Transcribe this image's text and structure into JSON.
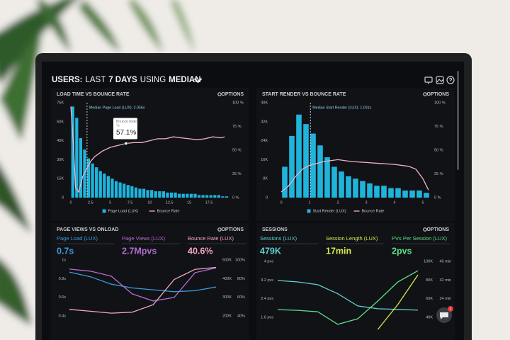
{
  "header": {
    "title_parts": [
      "USERS:",
      "LAST",
      "7 DAYS",
      "USING",
      "MEDIAN"
    ]
  },
  "chat_badge": "1",
  "chart_data": [
    {
      "type": "histogram",
      "title": "LOAD TIME VS BOUNCE RATE",
      "options_label": "OPTIONS",
      "bins": [
        0,
        0.5,
        1,
        1.5,
        2,
        2.5,
        3,
        3.5,
        4,
        4.5,
        5,
        5.5,
        6,
        6.5,
        7,
        7.5,
        8,
        8.5,
        9,
        9.5,
        10,
        10.5,
        11,
        11.5,
        12,
        12.5,
        13,
        13.5,
        14,
        14.5,
        15,
        15.5,
        16,
        16.5,
        17,
        17.5,
        18,
        18.5,
        19,
        19.5,
        20
      ],
      "xlim": [
        -0.5,
        20
      ],
      "xticks": [
        0,
        2.5,
        5,
        7.5,
        10,
        12.5,
        15,
        17.5
      ],
      "ylim": [
        0,
        75000
      ],
      "yticks": [
        0,
        {
          "value": 15000,
          "label": "15K"
        },
        {
          "value": 30000,
          "label": "30K"
        },
        {
          "value": 45000,
          "label": "45K"
        },
        {
          "value": 60000,
          "label": "60K"
        },
        {
          "value": 75000,
          "label": "75K"
        }
      ],
      "y2lim": [
        0,
        100
      ],
      "y2ticks": [
        {
          "value": 0,
          "label": "0 %"
        },
        {
          "value": 25,
          "label": "25 %"
        },
        {
          "value": 50,
          "label": "50 %"
        },
        {
          "value": 75,
          "label": "75 %"
        },
        {
          "value": 100,
          "label": "100 %"
        }
      ],
      "series": [
        {
          "name": "Page Load (LUX)",
          "color": "#1fb4dc",
          "values": [
            72000,
            63000,
            47000,
            38000,
            31000,
            27000,
            24000,
            21000,
            19000,
            17000,
            15000,
            13000,
            12000,
            11000,
            10000,
            9000,
            8000,
            7000,
            7000,
            6000,
            6000,
            5000,
            5000,
            5000,
            4000,
            4000,
            4000,
            3000,
            3000,
            3000,
            3000,
            3000,
            2000,
            2000,
            2000,
            2000,
            2000,
            2000,
            1000,
            1000
          ]
        },
        {
          "name": "Bounce Rate",
          "color": "#f0b3c8",
          "axis": "y2",
          "x": [
            0,
            0.3,
            0.6,
            1,
            1.5,
            2,
            2.5,
            3,
            4,
            5,
            6,
            7,
            8,
            9,
            10,
            11,
            12,
            13,
            14,
            15,
            16,
            17,
            18,
            19,
            19.5
          ],
          "values": [
            96,
            60,
            10,
            6,
            22,
            30,
            38,
            43,
            49,
            53,
            55,
            57.1,
            58,
            58,
            60,
            62,
            62,
            64,
            63,
            62,
            61,
            62,
            64,
            63,
            64
          ]
        }
      ],
      "annotations": [
        {
          "text": "Median Page Load (LUX): 2.056s",
          "x": 2.056
        }
      ],
      "tooltip": {
        "title": "Bounce Rate",
        "x_label": "7s",
        "value_label": "57.1%",
        "x": 7,
        "value": 57.1
      }
    },
    {
      "type": "histogram",
      "title": "START RENDER VS BOUNCE RATE",
      "options_label": "OPTIONS",
      "bins": [
        0,
        0.25,
        0.5,
        0.75,
        1,
        1.25,
        1.5,
        1.75,
        2,
        2.25,
        2.5,
        2.75,
        3,
        3.25,
        3.5,
        3.75,
        4,
        4.25,
        4.5,
        4.75,
        5,
        5.25
      ],
      "xlim": [
        -0.25,
        5.275
      ],
      "xticks": [
        0,
        1,
        2,
        3,
        4,
        5
      ],
      "ylim": [
        0,
        40000
      ],
      "yticks": [
        0,
        {
          "value": 8000,
          "label": "8K"
        },
        {
          "value": 16000,
          "label": "16K"
        },
        {
          "value": 24000,
          "label": "24K"
        },
        {
          "value": 32000,
          "label": "32K"
        },
        {
          "value": 40000,
          "label": "40K"
        }
      ],
      "y2lim": [
        0,
        100
      ],
      "y2ticks": [
        {
          "value": 0,
          "label": "0 %"
        },
        {
          "value": 25,
          "label": "25 %"
        },
        {
          "value": 50,
          "label": "50 %"
        },
        {
          "value": 75,
          "label": "75 %"
        },
        {
          "value": 100,
          "label": "100 %"
        }
      ],
      "series": [
        {
          "name": "Start Render (LUX)",
          "color": "#1fb4dc",
          "values": [
            13000,
            26000,
            35000,
            31000,
            27000,
            22000,
            17000,
            13000,
            11000,
            9000,
            8000,
            7000,
            6000,
            5000,
            5000,
            4000,
            4000,
            3000,
            3000,
            3000,
            2000
          ]
        },
        {
          "name": "Bounce Rate",
          "color": "#f0b3c8",
          "axis": "y2",
          "x": [
            0,
            0.25,
            0.5,
            0.75,
            1,
            1.25,
            1.5,
            2,
            2.5,
            3,
            3.5,
            4,
            4.5,
            4.75,
            5,
            5.2
          ],
          "values": [
            6,
            12,
            22,
            30,
            34,
            36,
            38,
            40,
            38,
            37,
            36,
            35,
            33,
            30,
            20,
            8
          ]
        }
      ],
      "annotations": [
        {
          "text": "Median Start Render (LUX): 1.031s",
          "x": 1.031
        }
      ]
    },
    {
      "type": "line",
      "title": "PAGE VIEWS VS ONLOAD",
      "options_label": "OPTIONS",
      "metrics": [
        {
          "label": "Page Load (LUX)",
          "value": "0.7s"
        },
        {
          "label": "Page Views (LUX)",
          "value": "2.7Mpvs"
        },
        {
          "label": "Bounce Rate (LUX)",
          "value": "40.6%"
        }
      ],
      "ylim": [
        0.4,
        1
      ],
      "yticks": [
        {
          "value": 1,
          "label": "1s"
        },
        {
          "value": 0.8,
          "label": "0.8s"
        },
        {
          "value": 0.6,
          "label": "0.6s"
        },
        {
          "value": 0.4,
          "label": "0.4s"
        }
      ],
      "y2lim": [
        200000,
        500000
      ],
      "y2ticks": [
        {
          "value": 500000,
          "label": "500K"
        },
        {
          "value": 400000,
          "label": "400K"
        },
        {
          "value": 300000,
          "label": "300K"
        },
        {
          "value": 200000,
          "label": "200K"
        }
      ],
      "y3lim": [
        40,
        100
      ],
      "y3ticks": [
        {
          "value": 100,
          "label": "100%"
        },
        {
          "value": 80,
          "label": "80%"
        },
        {
          "value": 60,
          "label": "60%"
        },
        {
          "value": 40,
          "label": "40%"
        }
      ],
      "series": [
        {
          "name": "Page Load (LUX)",
          "color": "#3a9ad9",
          "axis": "y",
          "values": [
            0.87,
            0.82,
            0.74,
            0.7,
            0.68,
            0.66,
            0.67,
            0.71
          ]
        },
        {
          "name": "Page Views (LUX)",
          "color": "#b56bd0",
          "axis": "y2",
          "values": [
            451000,
            440000,
            413000,
            318000,
            280000,
            299000,
            432000,
            458000
          ]
        },
        {
          "name": "Bounce Rate (LUX)",
          "color": "#f3a6c4",
          "axis": "y3",
          "values": [
            47,
            45,
            43,
            44,
            52,
            79,
            90,
            92
          ]
        }
      ]
    },
    {
      "type": "line",
      "title": "SESSIONS",
      "options_label": "OPTIONS",
      "metrics": [
        {
          "label": "Sessions (LUX)",
          "value": "479K"
        },
        {
          "label": "Session Length (LUX)",
          "value": "17min"
        },
        {
          "label": "PVs Per Session (LUX)",
          "value": "2pvs"
        }
      ],
      "ylim": [
        1.6,
        4
      ],
      "yticks": [
        {
          "value": 4,
          "label": "4 pvs"
        },
        {
          "value": 3.2,
          "label": "3.2 pvs"
        },
        {
          "value": 2.4,
          "label": "2.4 pvs"
        },
        {
          "value": 1.6,
          "label": "1.6 pvs"
        }
      ],
      "y2lim": [
        40000,
        100000
      ],
      "y2ticks": [
        {
          "value": 100000,
          "label": "100K"
        },
        {
          "value": 80000,
          "label": "80K"
        },
        {
          "value": 60000,
          "label": "60K"
        },
        {
          "value": 40000,
          "label": "40K"
        }
      ],
      "y3lim": [
        16,
        40
      ],
      "y3ticks": [
        {
          "value": 40,
          "label": "40 min"
        },
        {
          "value": 32,
          "label": "32 min"
        },
        {
          "value": 24,
          "label": "24 min"
        },
        {
          "value": 16,
          "label": "16 min"
        }
      ],
      "series": [
        {
          "name": "Sessions (LUX)",
          "color": "#5fd0d0",
          "axis": "y2",
          "values": [
            79500,
            78000,
            75000,
            65300,
            52200,
            49200,
            48500,
            47700
          ]
        },
        {
          "name": "Session Length (LUX)",
          "color": "#d8ea4e",
          "axis": "y3",
          "values": [
            null,
            null,
            null,
            null,
            null,
            10.8,
            21.5,
            34.2
          ]
        },
        {
          "name": "PVs Per Session (LUX)",
          "color": "#5ee08a",
          "axis": "y",
          "values": [
            1.93,
            1.9,
            1.84,
            1.3,
            1.54,
            2.3,
            3.12,
            3.6
          ]
        }
      ]
    }
  ]
}
